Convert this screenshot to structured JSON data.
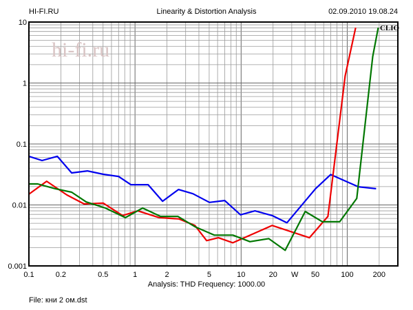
{
  "header": {
    "left": "HI-FI.RU",
    "title": "Linearity & Distortion Analysis",
    "datetime": "02.09.2010 19.08.24"
  },
  "watermark": "hi-fi.ru",
  "brand": "CLIO",
  "footer": {
    "analysis": "Analysis: THD   Frequency: 1000.00",
    "file": "File: кни 2 ом.dst"
  },
  "chart_data": {
    "type": "line",
    "title": "Linearity & Distortion Analysis",
    "xlabel": "W",
    "ylabel": "THD",
    "xscale": "log",
    "yscale": "log",
    "xlim": [
      0.1,
      300
    ],
    "ylim": [
      0.001,
      10
    ],
    "grid": true,
    "x_ticks": [
      {
        "v": 0.1,
        "label": "0.1"
      },
      {
        "v": 0.2,
        "label": "0.2"
      },
      {
        "v": 0.5,
        "label": "0.5"
      },
      {
        "v": 1,
        "label": "1"
      },
      {
        "v": 2,
        "label": "2"
      },
      {
        "v": 5,
        "label": "5"
      },
      {
        "v": 10,
        "label": "10"
      },
      {
        "v": 20,
        "label": "20"
      },
      {
        "v": 32,
        "label": "W"
      },
      {
        "v": 50,
        "label": "50"
      },
      {
        "v": 100,
        "label": "100"
      },
      {
        "v": 200,
        "label": "200"
      }
    ],
    "y_ticks": [
      {
        "v": 10,
        "label": "10"
      },
      {
        "v": 1,
        "label": "1"
      },
      {
        "v": 0.1,
        "label": "0.1"
      },
      {
        "v": 0.01,
        "label": "0.01"
      },
      {
        "v": 0.001,
        "label": "0.001"
      }
    ],
    "series": [
      {
        "name": "blue",
        "color": "#0000ee",
        "x": [
          0.1,
          0.133,
          0.185,
          0.253,
          0.356,
          0.503,
          0.698,
          0.914,
          1.33,
          1.82,
          2.57,
          3.51,
          5.03,
          7.0,
          9.86,
          13.5,
          19.6,
          27,
          50.3,
          69.8,
          97,
          127,
          187
        ],
        "y": [
          0.0627,
          0.0536,
          0.0627,
          0.0335,
          0.0362,
          0.0318,
          0.0294,
          0.0215,
          0.0215,
          0.0115,
          0.0179,
          0.0153,
          0.011,
          0.0118,
          0.0069,
          0.008,
          0.0067,
          0.0051,
          0.0185,
          0.0315,
          0.0245,
          0.0199,
          0.0185
        ]
      },
      {
        "name": "red",
        "color": "#ee0000",
        "x": [
          0.1,
          0.147,
          0.228,
          0.331,
          0.503,
          0.764,
          1.06,
          1.69,
          2.6,
          3.67,
          4.73,
          6.1,
          8.36,
          19.6,
          44,
          65.8,
          95.5,
          120
        ],
        "y": [
          0.015,
          0.0245,
          0.0146,
          0.0104,
          0.0107,
          0.0067,
          0.008,
          0.0062,
          0.0059,
          0.0046,
          0.0026,
          0.0029,
          0.0024,
          0.0046,
          0.0029,
          0.0065,
          1.3,
          8.1
        ]
      },
      {
        "name": "green",
        "color": "#007700",
        "x": [
          0.1,
          0.121,
          0.177,
          0.253,
          0.346,
          0.526,
          0.811,
          1.18,
          1.74,
          2.53,
          3.67,
          5.58,
          8.36,
          12.1,
          18.2,
          26,
          40.2,
          58.4,
          84.9,
          123,
          174,
          196
        ],
        "y": [
          0.0221,
          0.0221,
          0.0185,
          0.0162,
          0.0112,
          0.0089,
          0.0062,
          0.0089,
          0.0065,
          0.0065,
          0.0044,
          0.0032,
          0.0032,
          0.0025,
          0.0028,
          0.0018,
          0.0078,
          0.0053,
          0.0053,
          0.0128,
          2.72,
          8.1
        ]
      }
    ]
  }
}
